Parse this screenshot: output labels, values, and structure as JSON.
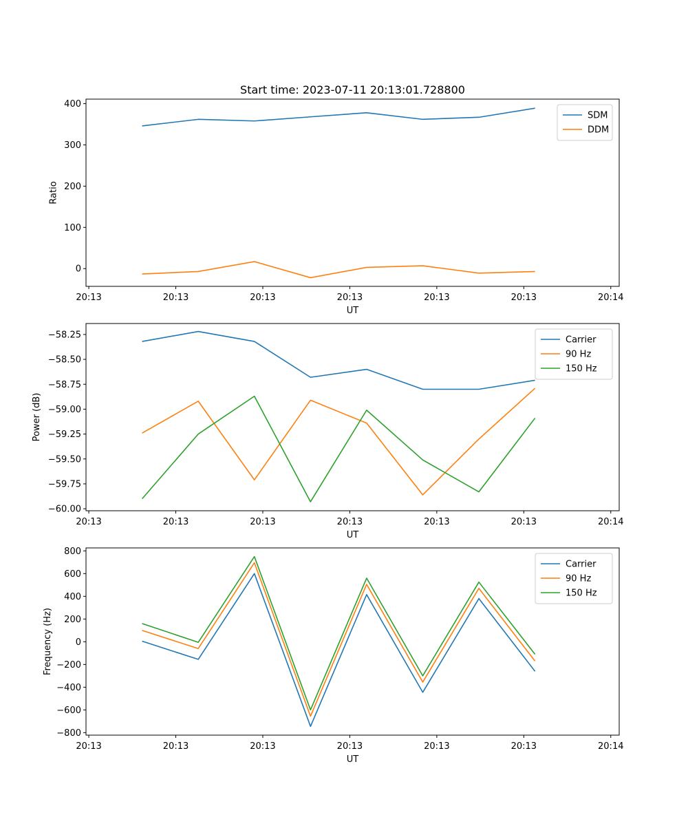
{
  "figure_title": "Start time: 2023-07-11 20:13:01.728800",
  "chart_data": [
    {
      "type": "line",
      "title": "Start time: 2023-07-11 20:13:01.728800",
      "xlabel": "UT",
      "ylabel": "Ratio",
      "x": [
        1,
        2,
        3,
        4,
        5,
        6,
        7,
        8
      ],
      "xlim": [
        0,
        9.5
      ],
      "xticks": [
        0.05,
        1.6,
        3.15,
        4.7,
        6.25,
        7.8,
        9.35
      ],
      "xtick_labels": [
        "20:13",
        "20:13",
        "20:13",
        "20:13",
        "20:13",
        "20:13",
        "20:14"
      ],
      "ylim": [
        -43,
        411
      ],
      "yticks": [
        0,
        100,
        200,
        300,
        400
      ],
      "ytick_labels": [
        "0",
        "100",
        "200",
        "300",
        "400"
      ],
      "legend_position": "top-right",
      "series": [
        {
          "name": "SDM",
          "color": "#1f77b4",
          "values": [
            346,
            362,
            358,
            368,
            378,
            362,
            367,
            389
          ]
        },
        {
          "name": "DDM",
          "color": "#ff7f0e",
          "values": [
            -13,
            -7,
            17,
            -22,
            3,
            7,
            -11,
            -7
          ]
        }
      ]
    },
    {
      "type": "line",
      "title": "",
      "xlabel": "UT",
      "ylabel": "Power (dB)",
      "x": [
        1,
        2,
        3,
        4,
        5,
        6,
        7,
        8
      ],
      "xlim": [
        0,
        9.5
      ],
      "xticks": [
        0.05,
        1.6,
        3.15,
        4.7,
        6.25,
        7.8,
        9.35
      ],
      "xtick_labels": [
        "20:13",
        "20:13",
        "20:13",
        "20:13",
        "20:13",
        "20:13",
        "20:14"
      ],
      "ylim": [
        -60.02,
        -58.14
      ],
      "yticks": [
        -60.0,
        -59.75,
        -59.5,
        -59.25,
        -59.0,
        -58.75,
        -58.5,
        -58.25
      ],
      "ytick_labels": [
        "−60.00",
        "−59.75",
        "−59.50",
        "−59.25",
        "−59.00",
        "−58.75",
        "−58.50",
        "−58.25"
      ],
      "legend_position": "top-right",
      "series": [
        {
          "name": "Carrier",
          "color": "#1f77b4",
          "values": [
            -58.32,
            -58.22,
            -58.32,
            -58.68,
            -58.6,
            -58.8,
            -58.8,
            -58.71
          ]
        },
        {
          "name": "90 Hz",
          "color": "#ff7f0e",
          "values": [
            -59.24,
            -58.92,
            -59.71,
            -58.91,
            -59.14,
            -59.86,
            -59.3,
            -58.79
          ]
        },
        {
          "name": "150 Hz",
          "color": "#2ca02c",
          "values": [
            -59.9,
            -59.25,
            -58.87,
            -59.93,
            -59.01,
            -59.51,
            -59.83,
            -59.09
          ]
        }
      ]
    },
    {
      "type": "line",
      "title": "",
      "xlabel": "UT",
      "ylabel": "Frequency (Hz)",
      "x": [
        1,
        2,
        3,
        4,
        5,
        6,
        7,
        8
      ],
      "xlim": [
        0,
        9.5
      ],
      "xticks": [
        0.05,
        1.6,
        3.15,
        4.7,
        6.25,
        7.8,
        9.35
      ],
      "xtick_labels": [
        "20:13",
        "20:13",
        "20:13",
        "20:13",
        "20:13",
        "20:13",
        "20:14"
      ],
      "ylim": [
        -822,
        826
      ],
      "yticks": [
        -800,
        -600,
        -400,
        -200,
        0,
        200,
        400,
        600,
        800
      ],
      "ytick_labels": [
        "−800",
        "−600",
        "−400",
        "−200",
        "0",
        "200",
        "400",
        "600",
        "800"
      ],
      "legend_position": "top-right",
      "series": [
        {
          "name": "Carrier",
          "color": "#1f77b4",
          "values": [
            5,
            -155,
            600,
            -745,
            415,
            -445,
            380,
            -260
          ]
        },
        {
          "name": "90 Hz",
          "color": "#ff7f0e",
          "values": [
            100,
            -60,
            695,
            -655,
            505,
            -355,
            470,
            -170
          ]
        },
        {
          "name": "150 Hz",
          "color": "#2ca02c",
          "values": [
            160,
            -5,
            750,
            -600,
            560,
            -300,
            525,
            -110
          ]
        }
      ]
    }
  ]
}
